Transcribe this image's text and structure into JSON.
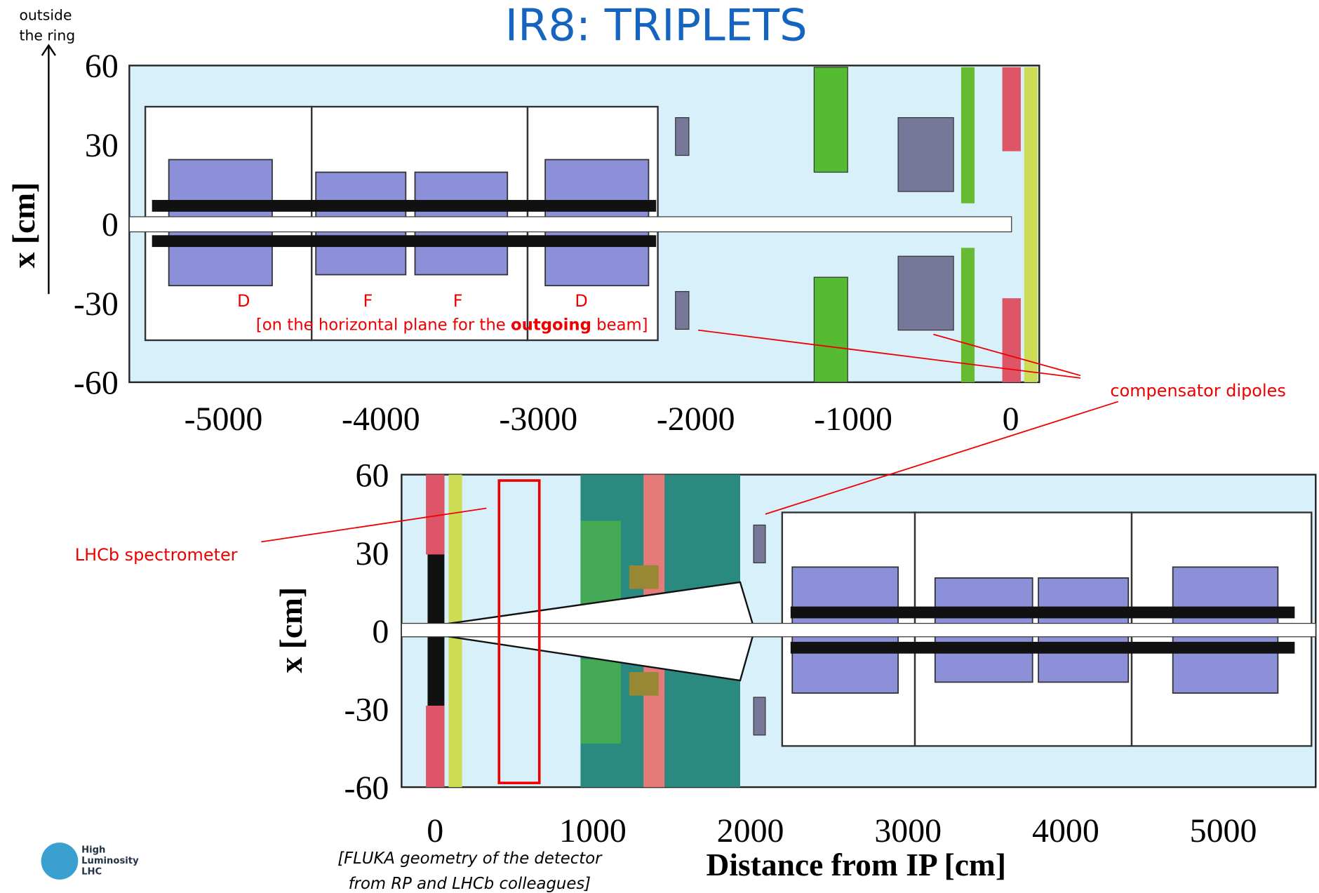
{
  "title": "IR8: TRIPLETS",
  "side_note": [
    "outside",
    "the ring"
  ],
  "top_plot": {
    "y_label": "x [cm]",
    "y_ticks": [
      60,
      30,
      0,
      -30,
      -60
    ],
    "x_ticks": [
      -5000,
      -4000,
      -3000,
      -2000,
      -1000,
      0
    ],
    "magnet_labels": [
      "D",
      "F",
      "F",
      "D"
    ],
    "caption": [
      "[on the horizontal plane for the ",
      "outgoing",
      " beam]"
    ]
  },
  "bottom_plot": {
    "y_label": "x [cm]",
    "y_ticks": [
      60,
      30,
      0,
      -30,
      -60
    ],
    "x_ticks": [
      0,
      1000,
      2000,
      3000,
      4000,
      5000
    ],
    "x_label": "Distance from IP [cm]"
  },
  "annotations": {
    "compensator": "compensator dipoles",
    "lhcb": "LHCb spectrometer"
  },
  "footnote": [
    "[FLUKA geometry of the detector",
    "from RP and LHCb colleagues]"
  ],
  "logo": [
    "High",
    "Luminosity",
    "LHC"
  ]
}
